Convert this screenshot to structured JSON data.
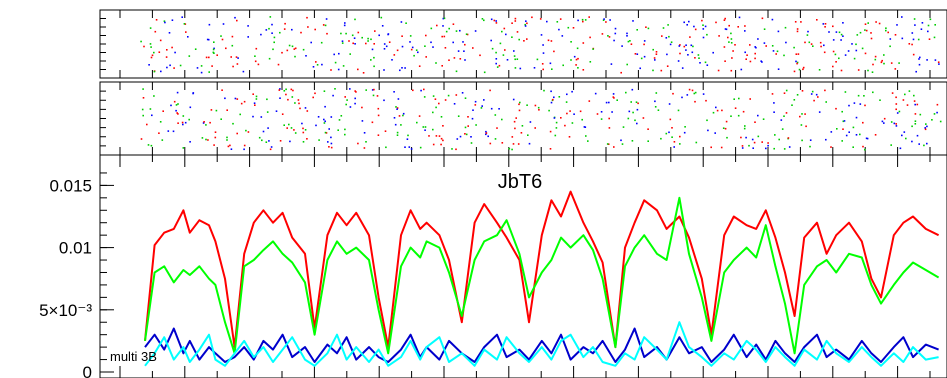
{
  "chart_data": [
    {
      "type": "scatter",
      "panel": "top-event-strip",
      "title": "",
      "note": "dense colored raster dots (red, green, blue) without numeric axis labels"
    },
    {
      "type": "scatter",
      "panel": "middle-event-strip",
      "title": "",
      "note": "dense colored raster dots (red, green, blue) without numeric axis labels"
    },
    {
      "type": "line",
      "panel": "main",
      "title": "JbT6",
      "annotation": "multi 3B",
      "xlabel": "",
      "ylabel": "",
      "xlim": [
        0,
        250
      ],
      "ylim": [
        0,
        0.0168
      ],
      "yticks": [
        {
          "value": 0,
          "label": "0"
        },
        {
          "value": 0.005,
          "label": "5×10⁻³"
        },
        {
          "value": 0.01,
          "label": "0.01"
        },
        {
          "value": 0.015,
          "label": "0.015"
        }
      ],
      "grid": false,
      "series": [
        {
          "color": "#ff0000",
          "x": [
            0,
            3,
            6,
            9,
            12,
            14,
            17,
            20,
            22,
            25,
            28,
            31,
            34,
            37,
            40,
            43,
            46,
            50,
            53,
            57,
            60,
            63,
            66,
            70,
            73,
            76,
            80,
            83,
            86,
            88,
            92,
            95,
            99,
            103,
            106,
            110,
            113,
            117,
            120,
            124,
            127,
            130,
            133,
            137,
            140,
            143,
            147,
            150,
            153,
            156,
            160,
            163,
            167,
            170,
            174,
            177,
            181,
            184,
            188,
            191,
            194,
            197,
            200,
            203,
            206,
            210,
            213,
            216,
            220,
            224,
            227,
            230,
            234,
            237,
            240,
            244,
            248
          ],
          "y": [
            0.0025,
            0.0102,
            0.0112,
            0.0115,
            0.013,
            0.0112,
            0.0122,
            0.0118,
            0.0105,
            0.0075,
            0.002,
            0.0095,
            0.012,
            0.013,
            0.012,
            0.0128,
            0.0108,
            0.0095,
            0.0035,
            0.011,
            0.0128,
            0.0118,
            0.0128,
            0.011,
            0.006,
            0.002,
            0.011,
            0.013,
            0.0115,
            0.012,
            0.011,
            0.009,
            0.004,
            0.012,
            0.0135,
            0.012,
            0.0108,
            0.009,
            0.004,
            0.011,
            0.0138,
            0.0125,
            0.0145,
            0.012,
            0.0105,
            0.0088,
            0.002,
            0.01,
            0.012,
            0.0138,
            0.013,
            0.0115,
            0.0125,
            0.0108,
            0.0075,
            0.003,
            0.011,
            0.0125,
            0.0118,
            0.0115,
            0.013,
            0.0108,
            0.008,
            0.0045,
            0.0108,
            0.012,
            0.0095,
            0.011,
            0.012,
            0.0105,
            0.0075,
            0.006,
            0.011,
            0.012,
            0.0125,
            0.0115,
            0.011
          ]
        },
        {
          "color": "#00ff00",
          "x": [
            0,
            3,
            6,
            9,
            12,
            14,
            17,
            20,
            22,
            25,
            28,
            31,
            34,
            37,
            40,
            43,
            46,
            50,
            53,
            57,
            60,
            63,
            66,
            70,
            73,
            76,
            80,
            83,
            86,
            88,
            92,
            95,
            99,
            103,
            106,
            110,
            113,
            117,
            120,
            124,
            127,
            130,
            133,
            137,
            140,
            143,
            147,
            150,
            153,
            156,
            160,
            163,
            167,
            170,
            174,
            177,
            181,
            184,
            188,
            191,
            194,
            197,
            200,
            203,
            206,
            210,
            213,
            216,
            220,
            224,
            227,
            230,
            234,
            237,
            240,
            244,
            248
          ],
          "y": [
            0.0025,
            0.008,
            0.0085,
            0.0072,
            0.0082,
            0.0078,
            0.0085,
            0.0075,
            0.007,
            0.004,
            0.0015,
            0.0085,
            0.009,
            0.0098,
            0.0105,
            0.0095,
            0.0088,
            0.0072,
            0.003,
            0.009,
            0.0105,
            0.0095,
            0.01,
            0.009,
            0.005,
            0.0015,
            0.0085,
            0.01,
            0.0092,
            0.0105,
            0.01,
            0.008,
            0.0045,
            0.009,
            0.0105,
            0.011,
            0.0122,
            0.0095,
            0.006,
            0.008,
            0.009,
            0.0108,
            0.01,
            0.011,
            0.0098,
            0.0075,
            0.002,
            0.0085,
            0.01,
            0.011,
            0.0095,
            0.009,
            0.014,
            0.0095,
            0.006,
            0.0025,
            0.008,
            0.009,
            0.01,
            0.0092,
            0.0118,
            0.0085,
            0.0055,
            0.0015,
            0.007,
            0.0085,
            0.009,
            0.008,
            0.0095,
            0.0092,
            0.007,
            0.0055,
            0.007,
            0.008,
            0.0088,
            0.0082,
            0.0076
          ]
        },
        {
          "color": "#0000cc",
          "x": [
            0,
            3,
            6,
            9,
            12,
            14,
            17,
            20,
            22,
            25,
            28,
            31,
            34,
            37,
            40,
            43,
            46,
            50,
            53,
            57,
            60,
            63,
            66,
            70,
            73,
            76,
            80,
            83,
            86,
            88,
            92,
            95,
            99,
            103,
            106,
            110,
            113,
            117,
            120,
            124,
            127,
            130,
            133,
            137,
            140,
            143,
            147,
            150,
            153,
            156,
            160,
            163,
            167,
            170,
            174,
            177,
            181,
            184,
            188,
            191,
            194,
            197,
            200,
            203,
            206,
            210,
            213,
            216,
            220,
            224,
            227,
            230,
            234,
            237,
            240,
            244,
            248
          ],
          "y": [
            0.002,
            0.003,
            0.0018,
            0.0035,
            0.0015,
            0.0025,
            0.001,
            0.002,
            0.0015,
            0.0008,
            0.0012,
            0.002,
            0.001,
            0.0025,
            0.0018,
            0.003,
            0.0012,
            0.002,
            0.0008,
            0.0022,
            0.0015,
            0.0028,
            0.001,
            0.002,
            0.0012,
            0.0008,
            0.0018,
            0.003,
            0.0012,
            0.002,
            0.001,
            0.0025,
            0.0015,
            0.0008,
            0.002,
            0.003,
            0.0012,
            0.0018,
            0.001,
            0.0025,
            0.0015,
            0.003,
            0.001,
            0.002,
            0.0015,
            0.0025,
            0.0008,
            0.0018,
            0.0035,
            0.0012,
            0.002,
            0.001,
            0.0028,
            0.0015,
            0.002,
            0.0008,
            0.0018,
            0.003,
            0.0012,
            0.0022,
            0.001,
            0.0025,
            0.0015,
            0.0008,
            0.002,
            0.003,
            0.0012,
            0.0018,
            0.001,
            0.0025,
            0.0015,
            0.0008,
            0.002,
            0.0028,
            0.0012,
            0.0022,
            0.0018
          ]
        },
        {
          "color": "#00ffff",
          "x": [
            0,
            3,
            6,
            9,
            12,
            14,
            17,
            20,
            22,
            25,
            28,
            31,
            34,
            37,
            40,
            43,
            46,
            50,
            53,
            57,
            60,
            63,
            66,
            70,
            73,
            76,
            80,
            83,
            86,
            88,
            92,
            95,
            99,
            103,
            106,
            110,
            113,
            117,
            120,
            124,
            127,
            130,
            133,
            137,
            140,
            143,
            147,
            150,
            153,
            156,
            160,
            163,
            167,
            170,
            174,
            177,
            181,
            184,
            188,
            191,
            194,
            197,
            200,
            203,
            206,
            210,
            213,
            216,
            220,
            224,
            227,
            230,
            234,
            237,
            240,
            244,
            248
          ],
          "y": [
            0.0005,
            0.0015,
            0.0028,
            0.001,
            0.002,
            0.0008,
            0.0018,
            0.003,
            0.001,
            0.0005,
            0.0015,
            0.0025,
            0.0012,
            0.002,
            0.0008,
            0.0018,
            0.0028,
            0.001,
            0.0005,
            0.0015,
            0.003,
            0.001,
            0.002,
            0.0008,
            0.0018,
            0.0005,
            0.0012,
            0.0025,
            0.001,
            0.002,
            0.0028,
            0.0008,
            0.0015,
            0.0005,
            0.0018,
            0.001,
            0.0028,
            0.0015,
            0.0008,
            0.002,
            0.001,
            0.0025,
            0.003,
            0.0012,
            0.002,
            0.0008,
            0.0005,
            0.0015,
            0.001,
            0.0028,
            0.0018,
            0.001,
            0.004,
            0.002,
            0.0012,
            0.0005,
            0.0015,
            0.001,
            0.0025,
            0.0018,
            0.0008,
            0.002,
            0.0012,
            0.0005,
            0.0018,
            0.001,
            0.0025,
            0.0015,
            0.0008,
            0.002,
            0.0012,
            0.0005,
            0.0015,
            0.0008,
            0.002,
            0.001,
            0.0012
          ]
        }
      ]
    }
  ]
}
